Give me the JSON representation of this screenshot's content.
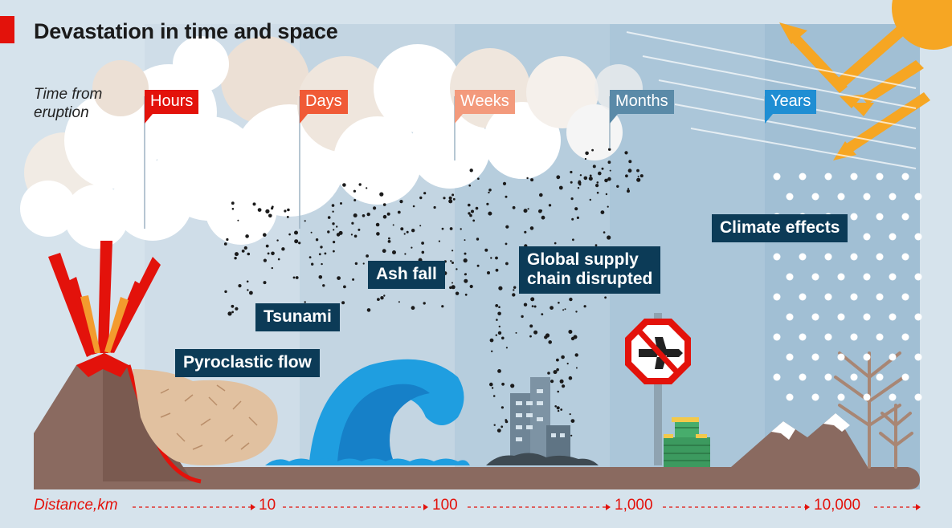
{
  "title": "Devastation in time and space",
  "time_axis": {
    "label_line1": "Time from",
    "label_line2": "eruption",
    "stages": [
      {
        "label": "Hours",
        "color": "#e3120b"
      },
      {
        "label": "Days",
        "color": "#f05a36"
      },
      {
        "label": "Weeks",
        "color": "#f39a7c"
      },
      {
        "label": "Months",
        "color": "#5a8aa8"
      },
      {
        "label": "Years",
        "color": "#1f8ed3"
      }
    ]
  },
  "effects": {
    "pyroclastic": "Pyroclastic flow",
    "tsunami": "Tsunami",
    "ash": "Ash fall",
    "supply_line1": "Global supply",
    "supply_line2": "chain disrupted",
    "climate": "Climate effects"
  },
  "distance_axis": {
    "label": "Distance,km",
    "ticks": [
      "10",
      "100",
      "1,000",
      "10,000"
    ],
    "color": "#e3120b"
  },
  "icons": [
    "volcano-icon",
    "wave-icon",
    "city-icon",
    "no-flights-sign-icon",
    "money-stack-icon",
    "mountain-icon",
    "bare-tree-icon",
    "sun-icon",
    "sun-ray-arrow-icon",
    "ash-cloud-icon"
  ]
}
